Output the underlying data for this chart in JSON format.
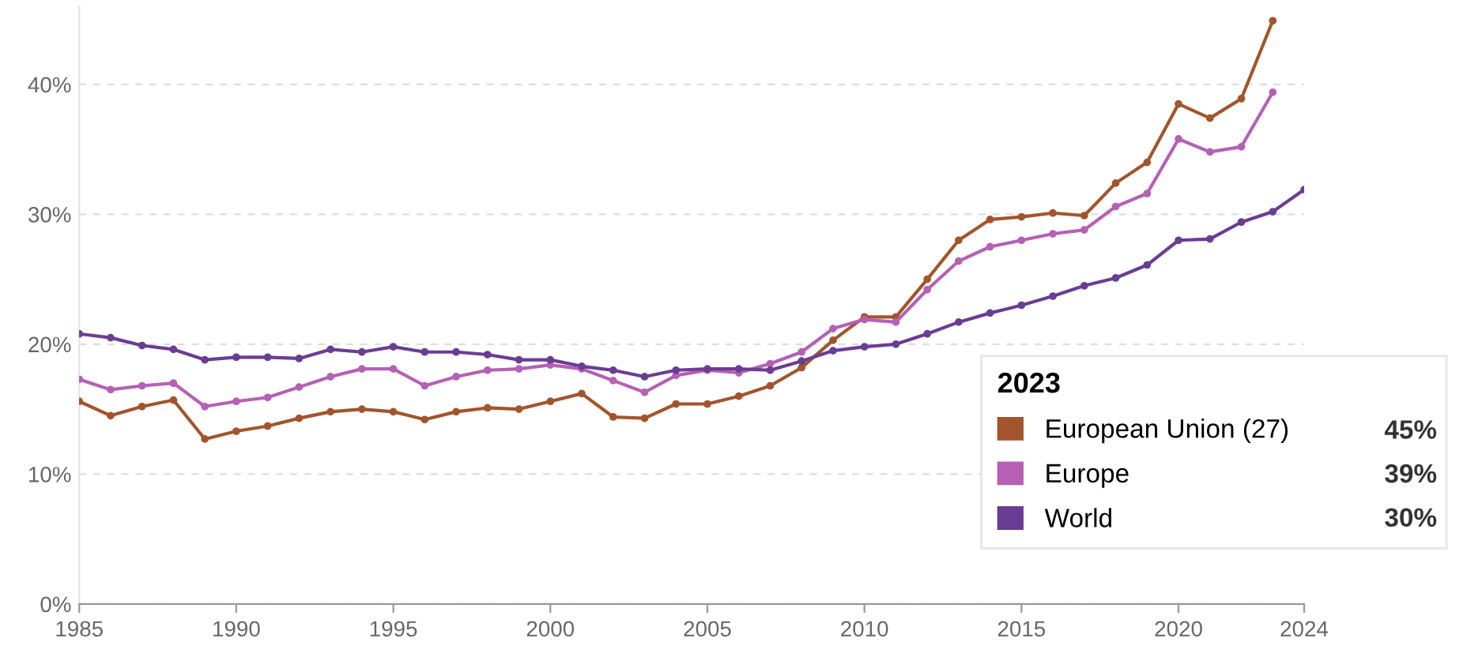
{
  "chart_data": {
    "type": "line",
    "x": [
      1985,
      1986,
      1987,
      1988,
      1989,
      1990,
      1991,
      1992,
      1993,
      1994,
      1995,
      1996,
      1997,
      1998,
      1999,
      2000,
      2001,
      2002,
      2003,
      2004,
      2005,
      2006,
      2007,
      2008,
      2009,
      2010,
      2011,
      2012,
      2013,
      2014,
      2015,
      2016,
      2017,
      2018,
      2019,
      2020,
      2021,
      2022,
      2023,
      2024
    ],
    "series": [
      {
        "name": "European Union (27)",
        "color": "#a2552c",
        "values": [
          15.6,
          14.5,
          15.2,
          15.7,
          12.7,
          13.3,
          13.7,
          14.3,
          14.8,
          15.0,
          14.8,
          14.2,
          14.8,
          15.1,
          15.0,
          15.6,
          16.2,
          14.4,
          14.3,
          15.4,
          15.4,
          16.0,
          16.8,
          18.2,
          20.3,
          22.1,
          22.1,
          25.0,
          28.0,
          29.6,
          29.8,
          30.1,
          29.9,
          32.4,
          34.0,
          38.5,
          37.4,
          38.9,
          44.9,
          null
        ]
      },
      {
        "name": "Europe",
        "color": "#b560b5",
        "values": [
          17.3,
          16.5,
          16.8,
          17.0,
          15.2,
          15.6,
          15.9,
          16.7,
          17.5,
          18.1,
          18.1,
          16.8,
          17.5,
          18.0,
          18.1,
          18.4,
          18.1,
          17.2,
          16.3,
          17.6,
          18.0,
          17.8,
          18.5,
          19.4,
          21.2,
          21.9,
          21.7,
          24.2,
          26.4,
          27.5,
          28.0,
          28.5,
          28.8,
          30.6,
          31.6,
          35.8,
          34.8,
          35.2,
          39.4,
          null
        ]
      },
      {
        "name": "World",
        "color": "#6a3d94",
        "values": [
          20.8,
          20.5,
          19.9,
          19.6,
          18.8,
          19.0,
          19.0,
          18.9,
          19.6,
          19.4,
          19.8,
          19.4,
          19.4,
          19.2,
          18.8,
          18.8,
          18.3,
          18.0,
          17.5,
          18.0,
          18.1,
          18.1,
          18.0,
          18.7,
          19.5,
          19.8,
          20.0,
          20.8,
          21.7,
          22.4,
          23.0,
          23.7,
          24.5,
          25.1,
          26.1,
          28.0,
          28.1,
          29.4,
          30.2,
          31.9
        ]
      }
    ],
    "xlim": [
      1985,
      2024
    ],
    "xticks": [
      1985,
      1990,
      1995,
      2000,
      2005,
      2010,
      2015,
      2020,
      2024
    ],
    "ylim": [
      0,
      46
    ],
    "yticks": [
      {
        "value": 0,
        "label": "0%"
      },
      {
        "value": 10,
        "label": "10%"
      },
      {
        "value": 20,
        "label": "20%"
      },
      {
        "value": 30,
        "label": "30%"
      },
      {
        "value": 40,
        "label": "40%"
      }
    ],
    "grid": "y",
    "marker": "circle",
    "line_style": "solid",
    "legend": "right",
    "legend_title": "2023",
    "annotations": [
      "45%",
      "39%",
      "30%"
    ]
  }
}
